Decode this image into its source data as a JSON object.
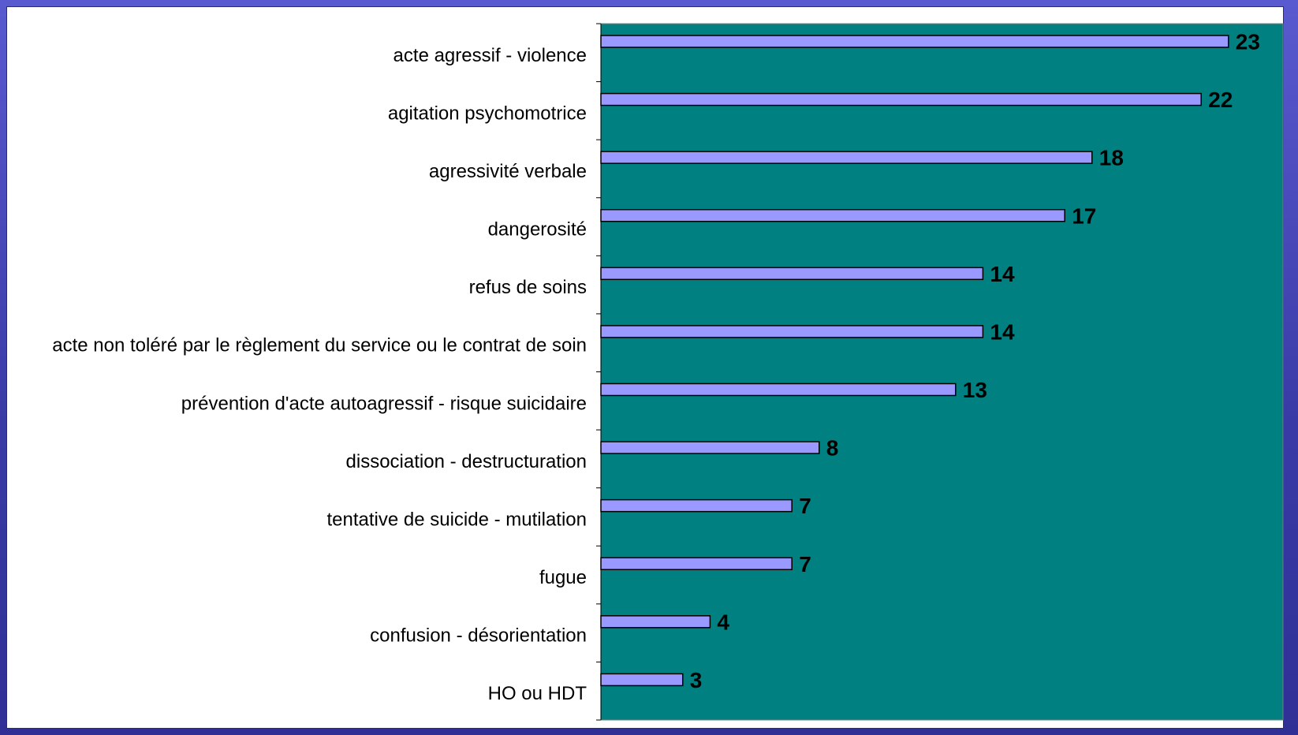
{
  "chart_data": {
    "type": "bar",
    "orientation": "horizontal",
    "categories": [
      "acte agressif - violence",
      "agitation psychomotrice",
      "agressivité verbale",
      "dangerosité",
      "refus de soins",
      "acte non toléré par le règlement du service ou le contrat de soin",
      "prévention d'acte autoagressif - risque suicidaire",
      "dissociation - destructuration ",
      "tentative de suicide - mutilation",
      "fugue",
      "confusion - désorientation",
      "HO ou HDT"
    ],
    "values": [
      23,
      22,
      18,
      17,
      14,
      14,
      13,
      8,
      7,
      7,
      4,
      3
    ],
    "xlim": [
      0,
      25
    ],
    "title": "",
    "xlabel": "",
    "ylabel": "",
    "data_labels": true,
    "grid": false,
    "legend": "none",
    "colors": {
      "plot_background": "#008080",
      "bar_fill": "#9999ff",
      "bar_stroke": "#000000",
      "frame": "#3f3fae",
      "panel": "#ffffff"
    }
  }
}
